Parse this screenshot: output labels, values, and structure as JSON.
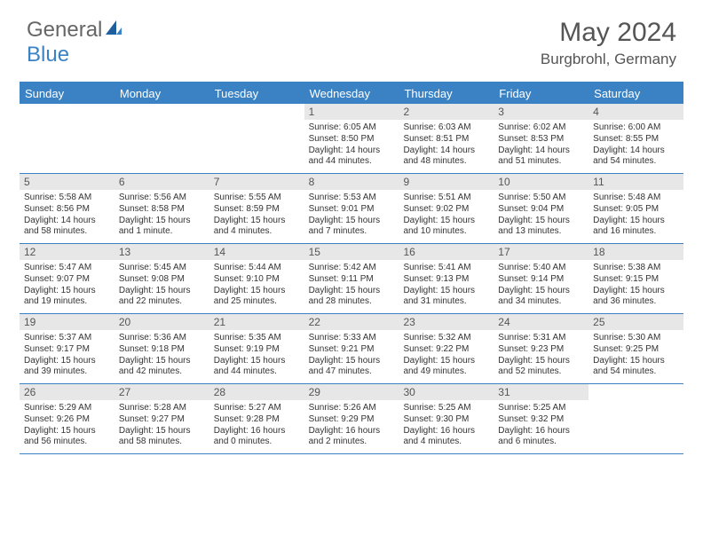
{
  "logo": {
    "general": "General",
    "blue": "Blue"
  },
  "title": "May 2024",
  "location": "Burgbrohl, Germany",
  "colors": {
    "accent": "#3b82c4",
    "daynum_bg": "#e7e7e7",
    "text": "#333333",
    "header_text": "#555555",
    "bg": "#ffffff"
  },
  "typography": {
    "title_fontsize": 30,
    "location_fontsize": 17,
    "dow_fontsize": 13,
    "daynum_fontsize": 12,
    "body_fontsize": 10
  },
  "dow": [
    "Sunday",
    "Monday",
    "Tuesday",
    "Wednesday",
    "Thursday",
    "Friday",
    "Saturday"
  ],
  "weeks": [
    [
      {
        "n": "",
        "sr": "",
        "ss": "",
        "dl": ""
      },
      {
        "n": "",
        "sr": "",
        "ss": "",
        "dl": ""
      },
      {
        "n": "",
        "sr": "",
        "ss": "",
        "dl": ""
      },
      {
        "n": "1",
        "sr": "Sunrise: 6:05 AM",
        "ss": "Sunset: 8:50 PM",
        "dl": "Daylight: 14 hours and 44 minutes."
      },
      {
        "n": "2",
        "sr": "Sunrise: 6:03 AM",
        "ss": "Sunset: 8:51 PM",
        "dl": "Daylight: 14 hours and 48 minutes."
      },
      {
        "n": "3",
        "sr": "Sunrise: 6:02 AM",
        "ss": "Sunset: 8:53 PM",
        "dl": "Daylight: 14 hours and 51 minutes."
      },
      {
        "n": "4",
        "sr": "Sunrise: 6:00 AM",
        "ss": "Sunset: 8:55 PM",
        "dl": "Daylight: 14 hours and 54 minutes."
      }
    ],
    [
      {
        "n": "5",
        "sr": "Sunrise: 5:58 AM",
        "ss": "Sunset: 8:56 PM",
        "dl": "Daylight: 14 hours and 58 minutes."
      },
      {
        "n": "6",
        "sr": "Sunrise: 5:56 AM",
        "ss": "Sunset: 8:58 PM",
        "dl": "Daylight: 15 hours and 1 minute."
      },
      {
        "n": "7",
        "sr": "Sunrise: 5:55 AM",
        "ss": "Sunset: 8:59 PM",
        "dl": "Daylight: 15 hours and 4 minutes."
      },
      {
        "n": "8",
        "sr": "Sunrise: 5:53 AM",
        "ss": "Sunset: 9:01 PM",
        "dl": "Daylight: 15 hours and 7 minutes."
      },
      {
        "n": "9",
        "sr": "Sunrise: 5:51 AM",
        "ss": "Sunset: 9:02 PM",
        "dl": "Daylight: 15 hours and 10 minutes."
      },
      {
        "n": "10",
        "sr": "Sunrise: 5:50 AM",
        "ss": "Sunset: 9:04 PM",
        "dl": "Daylight: 15 hours and 13 minutes."
      },
      {
        "n": "11",
        "sr": "Sunrise: 5:48 AM",
        "ss": "Sunset: 9:05 PM",
        "dl": "Daylight: 15 hours and 16 minutes."
      }
    ],
    [
      {
        "n": "12",
        "sr": "Sunrise: 5:47 AM",
        "ss": "Sunset: 9:07 PM",
        "dl": "Daylight: 15 hours and 19 minutes."
      },
      {
        "n": "13",
        "sr": "Sunrise: 5:45 AM",
        "ss": "Sunset: 9:08 PM",
        "dl": "Daylight: 15 hours and 22 minutes."
      },
      {
        "n": "14",
        "sr": "Sunrise: 5:44 AM",
        "ss": "Sunset: 9:10 PM",
        "dl": "Daylight: 15 hours and 25 minutes."
      },
      {
        "n": "15",
        "sr": "Sunrise: 5:42 AM",
        "ss": "Sunset: 9:11 PM",
        "dl": "Daylight: 15 hours and 28 minutes."
      },
      {
        "n": "16",
        "sr": "Sunrise: 5:41 AM",
        "ss": "Sunset: 9:13 PM",
        "dl": "Daylight: 15 hours and 31 minutes."
      },
      {
        "n": "17",
        "sr": "Sunrise: 5:40 AM",
        "ss": "Sunset: 9:14 PM",
        "dl": "Daylight: 15 hours and 34 minutes."
      },
      {
        "n": "18",
        "sr": "Sunrise: 5:38 AM",
        "ss": "Sunset: 9:15 PM",
        "dl": "Daylight: 15 hours and 36 minutes."
      }
    ],
    [
      {
        "n": "19",
        "sr": "Sunrise: 5:37 AM",
        "ss": "Sunset: 9:17 PM",
        "dl": "Daylight: 15 hours and 39 minutes."
      },
      {
        "n": "20",
        "sr": "Sunrise: 5:36 AM",
        "ss": "Sunset: 9:18 PM",
        "dl": "Daylight: 15 hours and 42 minutes."
      },
      {
        "n": "21",
        "sr": "Sunrise: 5:35 AM",
        "ss": "Sunset: 9:19 PM",
        "dl": "Daylight: 15 hours and 44 minutes."
      },
      {
        "n": "22",
        "sr": "Sunrise: 5:33 AM",
        "ss": "Sunset: 9:21 PM",
        "dl": "Daylight: 15 hours and 47 minutes."
      },
      {
        "n": "23",
        "sr": "Sunrise: 5:32 AM",
        "ss": "Sunset: 9:22 PM",
        "dl": "Daylight: 15 hours and 49 minutes."
      },
      {
        "n": "24",
        "sr": "Sunrise: 5:31 AM",
        "ss": "Sunset: 9:23 PM",
        "dl": "Daylight: 15 hours and 52 minutes."
      },
      {
        "n": "25",
        "sr": "Sunrise: 5:30 AM",
        "ss": "Sunset: 9:25 PM",
        "dl": "Daylight: 15 hours and 54 minutes."
      }
    ],
    [
      {
        "n": "26",
        "sr": "Sunrise: 5:29 AM",
        "ss": "Sunset: 9:26 PM",
        "dl": "Daylight: 15 hours and 56 minutes."
      },
      {
        "n": "27",
        "sr": "Sunrise: 5:28 AM",
        "ss": "Sunset: 9:27 PM",
        "dl": "Daylight: 15 hours and 58 minutes."
      },
      {
        "n": "28",
        "sr": "Sunrise: 5:27 AM",
        "ss": "Sunset: 9:28 PM",
        "dl": "Daylight: 16 hours and 0 minutes."
      },
      {
        "n": "29",
        "sr": "Sunrise: 5:26 AM",
        "ss": "Sunset: 9:29 PM",
        "dl": "Daylight: 16 hours and 2 minutes."
      },
      {
        "n": "30",
        "sr": "Sunrise: 5:25 AM",
        "ss": "Sunset: 9:30 PM",
        "dl": "Daylight: 16 hours and 4 minutes."
      },
      {
        "n": "31",
        "sr": "Sunrise: 5:25 AM",
        "ss": "Sunset: 9:32 PM",
        "dl": "Daylight: 16 hours and 6 minutes."
      },
      {
        "n": "",
        "sr": "",
        "ss": "",
        "dl": ""
      }
    ]
  ]
}
